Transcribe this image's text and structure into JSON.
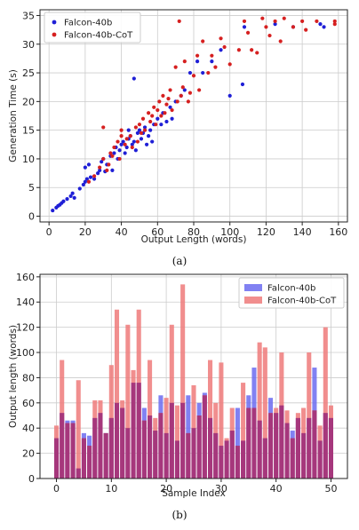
{
  "chart_data": [
    {
      "type": "scatter",
      "caption": "(a)",
      "xlabel": "Output Length (words)",
      "ylabel": "Generation Time (s)",
      "xlim": [
        -5,
        165
      ],
      "ylim": [
        -1,
        36
      ],
      "xticks": [
        0,
        20,
        40,
        60,
        80,
        100,
        120,
        140,
        160
      ],
      "yticks": [
        0,
        5,
        10,
        15,
        20,
        25,
        30,
        35
      ],
      "grid": true,
      "legend_position": "top-left",
      "series": [
        {
          "name": "Falcon-40b",
          "color": "#1f1fd6",
          "points": [
            [
              2,
              1.0
            ],
            [
              4,
              1.5
            ],
            [
              5,
              1.8
            ],
            [
              6,
              2.0
            ],
            [
              7,
              2.3
            ],
            [
              8,
              2.6
            ],
            [
              10,
              3.0
            ],
            [
              12,
              3.5
            ],
            [
              13,
              4.0
            ],
            [
              14,
              3.2
            ],
            [
              17,
              4.8
            ],
            [
              19,
              5.5
            ],
            [
              20,
              6.0
            ],
            [
              21,
              6.5
            ],
            [
              20,
              8.5
            ],
            [
              22,
              9.0
            ],
            [
              23,
              6.8
            ],
            [
              25,
              6.5
            ],
            [
              27,
              7.5
            ],
            [
              28,
              8.0
            ],
            [
              29,
              9.5
            ],
            [
              30,
              10.0
            ],
            [
              31,
              7.8
            ],
            [
              32,
              9.0
            ],
            [
              34,
              10.5
            ],
            [
              35,
              8.0
            ],
            [
              36,
              11.0
            ],
            [
              37,
              12.0
            ],
            [
              38,
              10.0
            ],
            [
              39,
              11.5
            ],
            [
              40,
              12.5
            ],
            [
              41,
              13.0
            ],
            [
              42,
              11.0
            ],
            [
              43,
              12.0
            ],
            [
              44,
              13.5
            ],
            [
              45,
              14.0
            ],
            [
              46,
              12.5
            ],
            [
              47,
              13.0
            ],
            [
              48,
              11.5
            ],
            [
              49,
              14.5
            ],
            [
              50,
              15.0
            ],
            [
              51,
              13.5
            ],
            [
              52,
              14.5
            ],
            [
              53,
              15.5
            ],
            [
              54,
              12.5
            ],
            [
              55,
              14.0
            ],
            [
              56,
              15.0
            ],
            [
              57,
              13.0
            ],
            [
              58,
              16.0
            ],
            [
              60,
              17.0
            ],
            [
              62,
              16.0
            ],
            [
              63,
              18.0
            ],
            [
              65,
              16.5
            ],
            [
              67,
              19.0
            ],
            [
              68,
              17.0
            ],
            [
              70,
              20.0
            ],
            [
              73,
              21.0
            ],
            [
              75,
              22.0
            ],
            [
              78,
              25.0
            ],
            [
              82,
              27.0
            ],
            [
              85,
              25.0
            ],
            [
              90,
              27.0
            ],
            [
              95,
              29.0
            ],
            [
              100,
              21.0
            ],
            [
              107,
              23.0
            ],
            [
              108,
              33.0
            ],
            [
              125,
              33.5
            ],
            [
              135,
              33.0
            ],
            [
              150,
              33.5
            ],
            [
              152,
              33.0
            ],
            [
              47,
              24.0
            ],
            [
              44,
              15.0
            ]
          ]
        },
        {
          "name": "Falcon-40b-CoT",
          "color": "#d62020",
          "points": [
            [
              22,
              6.0
            ],
            [
              25,
              7.0
            ],
            [
              28,
              8.5
            ],
            [
              30,
              10.0
            ],
            [
              30,
              15.5
            ],
            [
              32,
              8.0
            ],
            [
              33,
              9.0
            ],
            [
              34,
              11.0
            ],
            [
              35,
              10.5
            ],
            [
              36,
              12.0
            ],
            [
              38,
              13.0
            ],
            [
              39,
              10.0
            ],
            [
              40,
              14.0
            ],
            [
              40,
              15.0
            ],
            [
              42,
              12.5
            ],
            [
              43,
              13.5
            ],
            [
              45,
              14.0
            ],
            [
              46,
              12.0
            ],
            [
              48,
              15.5
            ],
            [
              49,
              13.0
            ],
            [
              50,
              16.0
            ],
            [
              51,
              14.5
            ],
            [
              52,
              17.0
            ],
            [
              53,
              15.0
            ],
            [
              55,
              18.0
            ],
            [
              56,
              16.5
            ],
            [
              57,
              17.5
            ],
            [
              58,
              19.0
            ],
            [
              59,
              16.0
            ],
            [
              60,
              18.5
            ],
            [
              61,
              20.0
            ],
            [
              62,
              17.5
            ],
            [
              63,
              21.0
            ],
            [
              64,
              18.0
            ],
            [
              65,
              19.5
            ],
            [
              66,
              20.5
            ],
            [
              67,
              22.0
            ],
            [
              68,
              18.5
            ],
            [
              70,
              26.0
            ],
            [
              71,
              20.0
            ],
            [
              72,
              34.0
            ],
            [
              73,
              21.0
            ],
            [
              74,
              22.5
            ],
            [
              75,
              27.0
            ],
            [
              77,
              20.0
            ],
            [
              78,
              21.5
            ],
            [
              80,
              24.5
            ],
            [
              82,
              28.0
            ],
            [
              83,
              22.0
            ],
            [
              85,
              30.5
            ],
            [
              88,
              25.0
            ],
            [
              90,
              28.0
            ],
            [
              92,
              26.0
            ],
            [
              95,
              31.0
            ],
            [
              97,
              29.5
            ],
            [
              100,
              26.5
            ],
            [
              105,
              29.0
            ],
            [
              108,
              34.0
            ],
            [
              110,
              32.0
            ],
            [
              112,
              29.0
            ],
            [
              115,
              28.5
            ],
            [
              118,
              34.5
            ],
            [
              120,
              33.0
            ],
            [
              122,
              31.5
            ],
            [
              125,
              34.0
            ],
            [
              128,
              30.5
            ],
            [
              130,
              34.5
            ],
            [
              135,
              33.0
            ],
            [
              140,
              34.0
            ],
            [
              142,
              32.5
            ],
            [
              148,
              34.0
            ],
            [
              158,
              34.0
            ],
            [
              158,
              33.5
            ]
          ]
        }
      ]
    },
    {
      "type": "bar",
      "caption": "(b)",
      "xlabel": "Sample Index",
      "ylabel": "Output length (words)",
      "xlim": [
        -3,
        53
      ],
      "ylim": [
        0,
        162
      ],
      "xticks": [
        0,
        10,
        20,
        30,
        40,
        50
      ],
      "yticks": [
        0,
        20,
        40,
        60,
        80,
        100,
        120,
        140,
        160
      ],
      "grid": true,
      "legend_position": "top-right",
      "categories": [
        0,
        1,
        2,
        3,
        4,
        5,
        6,
        7,
        8,
        9,
        10,
        11,
        12,
        13,
        14,
        15,
        16,
        17,
        18,
        19,
        20,
        21,
        22,
        23,
        24,
        25,
        26,
        27,
        28,
        29,
        30,
        31,
        32,
        33,
        34,
        35,
        36,
        37,
        38,
        39,
        40,
        41,
        42,
        43,
        44,
        45,
        46,
        47,
        48,
        49,
        50
      ],
      "series": [
        {
          "name": "Falcon-40b",
          "color": "#6b6bf0",
          "values": [
            32,
            52,
            46,
            46,
            8,
            36,
            34,
            48,
            52,
            36,
            48,
            60,
            56,
            40,
            76,
            76,
            56,
            50,
            38,
            66,
            36,
            60,
            30,
            60,
            66,
            40,
            60,
            68,
            48,
            36,
            26,
            30,
            38,
            56,
            30,
            66,
            88,
            46,
            32,
            64,
            52,
            58,
            44,
            38,
            48,
            36,
            48,
            88,
            30,
            52,
            48
          ]
        },
        {
          "name": "Falcon-40b-CoT",
          "color": "#ee7a7a",
          "values": [
            42,
            94,
            44,
            44,
            78,
            32,
            26,
            62,
            62,
            36,
            90,
            134,
            62,
            122,
            86,
            134,
            46,
            94,
            48,
            52,
            64,
            122,
            58,
            154,
            36,
            74,
            50,
            66,
            94,
            60,
            92,
            32,
            56,
            26,
            76,
            56,
            56,
            108,
            104,
            52,
            56,
            100,
            54,
            32,
            52,
            56,
            100,
            54,
            42,
            120,
            58
          ]
        }
      ]
    }
  ]
}
